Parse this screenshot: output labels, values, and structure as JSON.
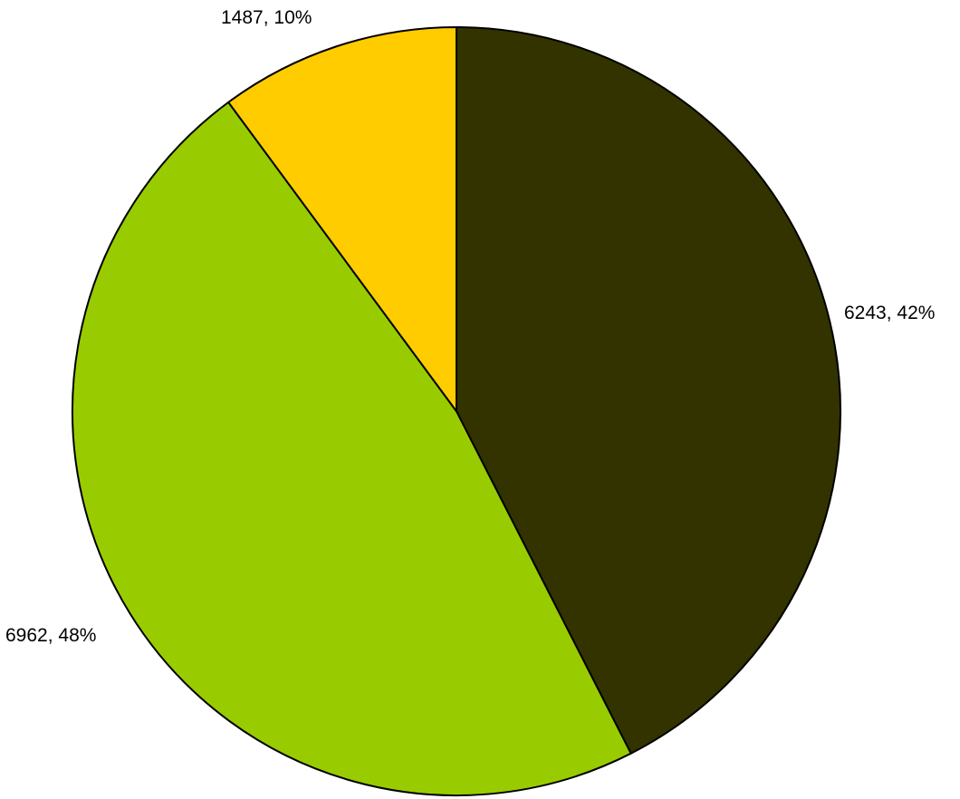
{
  "chart_data": {
    "type": "pie",
    "start_angle": "12 o'clock",
    "direction": "clockwise",
    "slices": [
      {
        "value": 6243,
        "percent": 42,
        "label": "6243, 42%",
        "color": "#333300"
      },
      {
        "value": 6962,
        "percent": 48,
        "label": "6962, 48%",
        "color": "#99cc00"
      },
      {
        "value": 1487,
        "percent": 10,
        "label": "1487, 10%",
        "color": "#ffcc00"
      }
    ],
    "legend": "none"
  }
}
